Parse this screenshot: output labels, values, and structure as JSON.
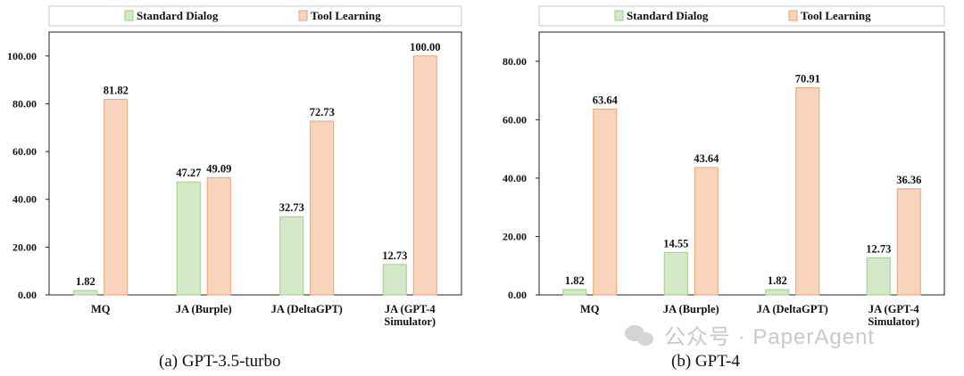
{
  "legend": {
    "standard": "Standard Dialog",
    "tool": "Tool Learning"
  },
  "colors": {
    "standard_fill": "#d5e8c8",
    "standard_stroke": "#9fcd87",
    "tool_fill": "#f8d4bd",
    "tool_stroke": "#f0a173",
    "axis": "#222222"
  },
  "captions": {
    "a": "(a)  GPT-3.5-turbo",
    "b": "(b)  GPT-4"
  },
  "watermark": "公众号 · PaperAgent",
  "chart_data": [
    {
      "type": "bar",
      "categories": [
        [
          "MQ"
        ],
        [
          "JA (Burple)"
        ],
        [
          "JA (DeltaGPT)"
        ],
        [
          "JA (GPT-4",
          "Simulator)"
        ]
      ],
      "series": [
        {
          "name": "Standard Dialog",
          "values": [
            1.82,
            47.27,
            32.73,
            12.73
          ]
        },
        {
          "name": "Tool Learning",
          "values": [
            81.82,
            49.09,
            72.73,
            100.0
          ]
        }
      ],
      "ylim": [
        0,
        110
      ],
      "yticks": [
        0,
        20,
        40,
        60,
        80,
        100
      ],
      "grid": false,
      "legend_position": "top"
    },
    {
      "type": "bar",
      "categories": [
        [
          "MQ"
        ],
        [
          "JA (Burple)"
        ],
        [
          "JA (DeltaGPT)"
        ],
        [
          "JA (GPT-4",
          "Simulator)"
        ]
      ],
      "series": [
        {
          "name": "Standard Dialog",
          "values": [
            1.82,
            14.55,
            1.82,
            12.73
          ]
        },
        {
          "name": "Tool Learning",
          "values": [
            63.64,
            43.64,
            70.91,
            36.36
          ]
        }
      ],
      "ylim": [
        0,
        90
      ],
      "yticks": [
        0,
        20,
        40,
        60,
        80
      ],
      "grid": false,
      "legend_position": "top"
    }
  ]
}
